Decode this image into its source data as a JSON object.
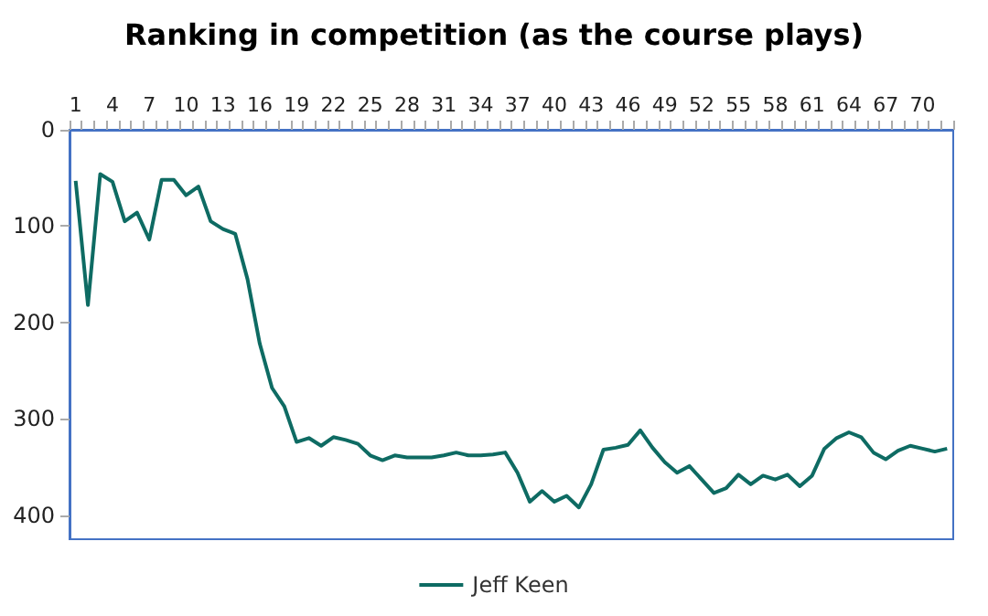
{
  "chart_data": {
    "type": "line",
    "title": "Ranking in competition (as the course plays)",
    "categories": [
      "1",
      null,
      null,
      "4",
      null,
      null,
      "7",
      null,
      null,
      "10",
      null,
      null,
      "13",
      null,
      null,
      "16",
      null,
      null,
      "19",
      null,
      null,
      "22",
      null,
      null,
      "25",
      null,
      null,
      "28",
      null,
      null,
      "31",
      null,
      null,
      "34",
      null,
      null,
      "37",
      null,
      null,
      "40",
      null,
      null,
      "43",
      null,
      null,
      "46",
      null,
      null,
      "49",
      null,
      null,
      "52",
      null,
      null,
      "55",
      null,
      null,
      "58",
      null,
      null,
      "61",
      null,
      null,
      "64",
      null,
      null,
      "67",
      null,
      null,
      "70",
      null,
      null
    ],
    "series": [
      {
        "name": "Jeff Keen",
        "color": "#0e6b63",
        "values": [
          53,
          182,
          46,
          54,
          95,
          86,
          114,
          52,
          52,
          68,
          59,
          95,
          103,
          108,
          155,
          222,
          268,
          287,
          324,
          320,
          328,
          319,
          322,
          326,
          338,
          343,
          338,
          340,
          340,
          340,
          338,
          335,
          338,
          338,
          337,
          335,
          356,
          386,
          375,
          386,
          380,
          392,
          368,
          332,
          330,
          327,
          312,
          330,
          345,
          356,
          349,
          363,
          377,
          372,
          358,
          368,
          359,
          363,
          358,
          370,
          359,
          331,
          320,
          314,
          319,
          335,
          342,
          333,
          328,
          331,
          334,
          331
        ]
      }
    ],
    "ylim": [
      425,
      0
    ],
    "yticks": [
      0,
      100,
      200,
      300,
      400
    ],
    "grid": false,
    "legend": "bottom",
    "marker": "none",
    "line_style": "solid"
  }
}
